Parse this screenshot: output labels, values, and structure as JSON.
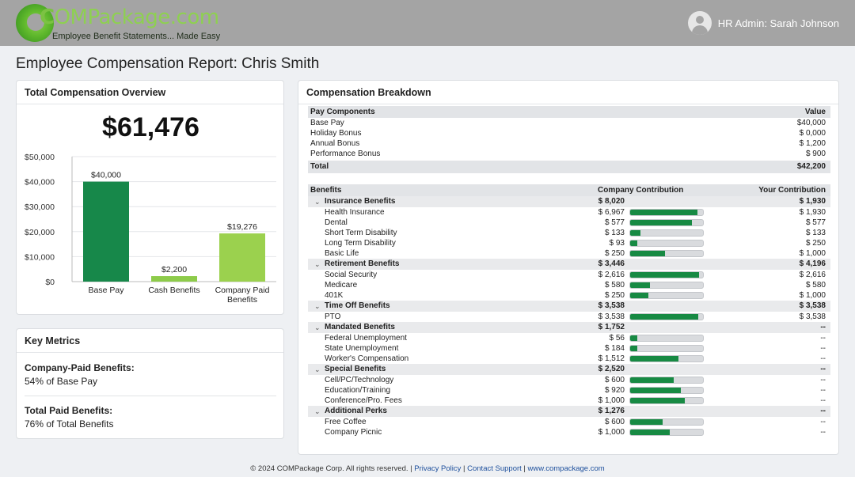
{
  "brand": {
    "logo_c": "C",
    "logo_rest": "OMPackage.com",
    "tagline": "Employee Benefit Statements... Made Easy",
    "accent": "#7cc243"
  },
  "user": {
    "label": "HR Admin: Sarah Johnson",
    "icon": "user-avatar-icon"
  },
  "page_title": "Employee Compensation Report: Chris Smith",
  "overview": {
    "title": "Total Compensation Overview",
    "total": "$61,476",
    "chart_data": {
      "type": "bar",
      "categories": [
        "Base Pay",
        "Cash Benefits",
        "Company Paid Benefits"
      ],
      "values": [
        40000,
        2200,
        19276
      ],
      "value_labels": [
        "$40,000",
        "$2,200",
        "$19,276"
      ],
      "colors": [
        "#17884a",
        "#8dcb4a",
        "#9bd14e"
      ],
      "ylim": [
        0,
        50000
      ],
      "y_ticks": [
        0,
        10000,
        20000,
        30000,
        40000,
        50000
      ],
      "y_tick_labels": [
        "$0",
        "$10,000",
        "$20,000",
        "$30,000",
        "$40,000",
        "$50,000"
      ],
      "category_lines": [
        [
          "Base Pay"
        ],
        [
          "Cash Benefits"
        ],
        [
          "Company Paid",
          "Benefits"
        ]
      ],
      "grid": true
    }
  },
  "metrics": {
    "title": "Key Metrics",
    "items": [
      {
        "label": "Company-Paid Benefits:",
        "value": "54% of Base Pay"
      },
      {
        "label": "Total Paid Benefits:",
        "value": "76% of Total Benefits"
      }
    ]
  },
  "breakdown": {
    "title": "Compensation Breakdown",
    "pay": {
      "headers": [
        "Pay Components",
        "Value"
      ],
      "rows": [
        {
          "name": "Base Pay",
          "value": "$40,000"
        },
        {
          "name": "Holiday Bonus",
          "value": "$ 0,000"
        },
        {
          "name": "Annual Bonus",
          "value": "$ 1,200"
        },
        {
          "name": "Performance Bonus",
          "value": "$ 900"
        }
      ],
      "total": {
        "name": "Total",
        "value": "$42,200"
      }
    },
    "benefits": {
      "headers": [
        "Benefits",
        "Company Contribution",
        "Your Contribution"
      ],
      "categories": [
        {
          "name": "Insurance Benefits",
          "company": "$ 8,020",
          "yours": "$ 1,930",
          "items": [
            {
              "name": "Health Insurance",
              "company": "$ 6,967",
              "yours": "$ 1,930",
              "fill": 0.92
            },
            {
              "name": "Dental",
              "company": "$ 577",
              "yours": "$ 577",
              "fill": 0.85
            },
            {
              "name": "Short Term Disability",
              "company": "$ 133",
              "yours": "$ 133",
              "fill": 0.14
            },
            {
              "name": "Long Term Disability",
              "company": "$ 93",
              "yours": "$ 250",
              "fill": 0.1
            },
            {
              "name": "Basic Life",
              "company": "$ 250",
              "yours": "$ 1,000",
              "fill": 0.48
            }
          ]
        },
        {
          "name": "Retirement Benefits",
          "company": "$ 3,446",
          "yours": "$ 4,196",
          "items": [
            {
              "name": "Social Security",
              "company": "$ 2,616",
              "yours": "$ 2,616",
              "fill": 0.95
            },
            {
              "name": "Medicare",
              "company": "$ 580",
              "yours": "$ 580",
              "fill": 0.27
            },
            {
              "name": "401K",
              "company": "$ 250",
              "yours": "$ 1,000",
              "fill": 0.25
            }
          ]
        },
        {
          "name": "Time Off Benefits",
          "company": "$ 3,538",
          "yours": "$ 3,538",
          "items": [
            {
              "name": "PTO",
              "company": "$ 3,538",
              "yours": "$ 3,538",
              "fill": 0.94
            }
          ]
        },
        {
          "name": "Mandated Benefits",
          "company": "$ 1,752",
          "yours": "--",
          "items": [
            {
              "name": "Federal Unemployment",
              "company": "$ 56",
              "yours": "--",
              "fill": 0.1
            },
            {
              "name": "State Unemployment",
              "company": "$ 184",
              "yours": "--",
              "fill": 0.1
            },
            {
              "name": "Worker's Compensation",
              "company": "$ 1,512",
              "yours": "--",
              "fill": 0.66
            }
          ]
        },
        {
          "name": "Special Benefits",
          "company": "$ 2,520",
          "yours": "--",
          "items": [
            {
              "name": "Cell/PC/Technology",
              "company": "$ 600",
              "yours": "--",
              "fill": 0.6
            },
            {
              "name": "Education/Training",
              "company": "$ 920",
              "yours": "--",
              "fill": 0.7
            },
            {
              "name": "Conference/Pro. Fees",
              "company": "$ 1,000",
              "yours": "--",
              "fill": 0.75
            }
          ]
        },
        {
          "name": "Additional Perks",
          "company": "$ 1,276",
          "yours": "--",
          "items": [
            {
              "name": "Free Coffee",
              "company": "$ 600",
              "yours": "--",
              "fill": 0.45
            },
            {
              "name": "Company Picnic",
              "company": "$ 1,000",
              "yours": "--",
              "fill": 0.54
            }
          ]
        }
      ]
    }
  },
  "footer": {
    "copyright": "© 2024 COMPackage Corp. All rights reserved.",
    "sep": "|",
    "privacy": "Privacy Policy",
    "support": "Contact Support",
    "site": "www.compackage.com"
  }
}
